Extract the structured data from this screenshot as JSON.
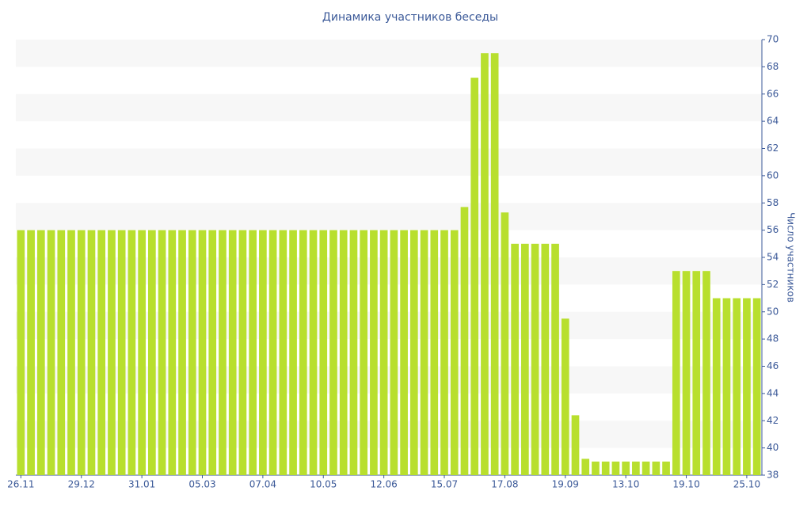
{
  "chart_data": {
    "type": "bar",
    "title": "Динамика участников беседы",
    "y_label": "Число участников",
    "categories": [
      "26.11",
      null,
      null,
      null,
      null,
      null,
      "29.12",
      null,
      null,
      null,
      null,
      null,
      "31.01",
      null,
      null,
      null,
      null,
      null,
      "05.03",
      null,
      null,
      null,
      null,
      null,
      "07.04",
      null,
      null,
      null,
      null,
      null,
      "10.05",
      null,
      null,
      null,
      null,
      null,
      "12.06",
      null,
      null,
      null,
      null,
      null,
      "15.07",
      null,
      null,
      null,
      null,
      null,
      "17.08",
      null,
      null,
      null,
      null,
      null,
      "19.09",
      null,
      null,
      null,
      null,
      null,
      "13.10",
      null,
      null,
      null,
      null,
      null,
      "19.10",
      null,
      null,
      null,
      null,
      null,
      "25.10",
      null
    ],
    "values": [
      56,
      56,
      56,
      56,
      56,
      56,
      56,
      56,
      56,
      56,
      56,
      56,
      56,
      56,
      56,
      56,
      56,
      56,
      56,
      56,
      56,
      56,
      56,
      56,
      56,
      56,
      56,
      56,
      56,
      56,
      56,
      56,
      56,
      56,
      56,
      56,
      56,
      56,
      56,
      56,
      56,
      56,
      56,
      56,
      57.7,
      67.2,
      69,
      69,
      57.3,
      55,
      55,
      55,
      55,
      55,
      49.5,
      42.4,
      39.2,
      39,
      39,
      39,
      39,
      39,
      39,
      39,
      39,
      53,
      53,
      53,
      53,
      51,
      51,
      51,
      51,
      51
    ],
    "color": "#b8df2e",
    "ylim": [
      38,
      70
    ],
    "yticks": [
      38,
      40,
      42,
      44,
      46,
      48,
      50,
      52,
      54,
      56,
      58,
      60,
      62,
      64,
      66,
      68,
      70
    ],
    "y_axis_side": "right",
    "grid": true
  }
}
